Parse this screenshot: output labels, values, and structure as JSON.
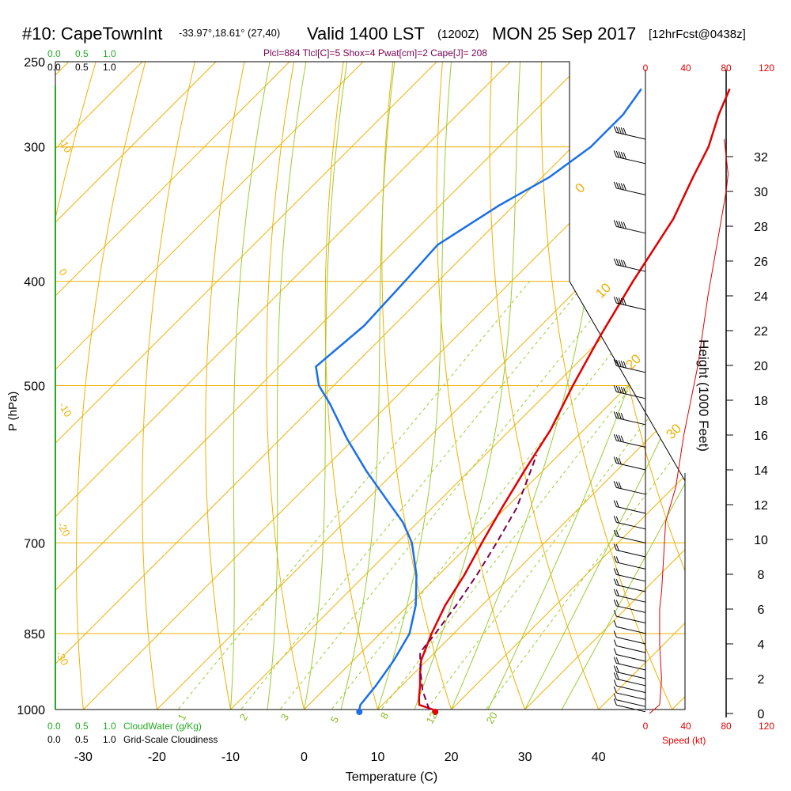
{
  "header": {
    "station": "#10: CapeTownInt",
    "coords": "-33.97°,18.61° (27,40)",
    "valid": "Valid 1400 LST",
    "utc": "(1200Z)",
    "date": "MON 25 Sep 2017",
    "forecast": "[12hrFcst@0438z]"
  },
  "indices": "Plcl=884 Tlcl[C]=5 Shox=4 Pwat[cm]=2 Cape[J]= 208",
  "colors": {
    "temperature": "#e00000",
    "dewpoint": "#1a6fe8",
    "parcel": "#7a0050",
    "isotherm": "#f0b000",
    "dry_adiabat": "#f0b000",
    "moist_adiabat": "#9acd32",
    "mixing_ratio": "#9acd32",
    "cloud_scale": "#22aa22",
    "speed": "#e00000"
  },
  "cloud_scale": {
    "top_green": [
      "0.0",
      "0.5",
      "1.0"
    ],
    "top_black": [
      "0.0",
      "0.5",
      "1.0"
    ],
    "bottom_green": [
      "0.0",
      "0.5",
      "1.0"
    ],
    "bottom_black": [
      "0.0",
      "0.5",
      "1.0"
    ],
    "cloudwater_label": "CloudWater (g/Kg)",
    "cloudiness_label": "Grid-Scale Cloudiness"
  },
  "chart_data": {
    "type": "line",
    "title": "#10: CapeTownInt Valid 1400 LST (1200Z) MON 25 Sep 2017",
    "xlabel": "Temperature (C)",
    "ylabel": "P (hPa)",
    "xlim": [
      -34,
      46
    ],
    "ylim_pressure": [
      1000,
      250
    ],
    "x_ticks": [
      "-30",
      "-20",
      "-10",
      "0",
      "10",
      "20",
      "30",
      "40"
    ],
    "p_ticks": [
      "1000",
      "850",
      "700",
      "500",
      "400",
      "300",
      "250"
    ],
    "isobar_levels": [
      1000,
      850,
      700,
      500,
      400,
      300,
      250
    ],
    "series": [
      {
        "name": "Temperature",
        "points": [
          {
            "p": 1000,
            "t": 17.5
          },
          {
            "p": 990,
            "t": 15.0
          },
          {
            "p": 975,
            "t": 14.0
          },
          {
            "p": 950,
            "t": 12.5
          },
          {
            "p": 925,
            "t": 10.8
          },
          {
            "p": 900,
            "t": 9.2
          },
          {
            "p": 850,
            "t": 7.0
          },
          {
            "p": 800,
            "t": 5.0
          },
          {
            "p": 750,
            "t": 3.5
          },
          {
            "p": 700,
            "t": 1.5
          },
          {
            "p": 650,
            "t": -0.5
          },
          {
            "p": 600,
            "t": -2.5
          },
          {
            "p": 550,
            "t": -4.5
          },
          {
            "p": 500,
            "t": -7.5
          },
          {
            "p": 450,
            "t": -10.5
          },
          {
            "p": 400,
            "t": -13.5
          },
          {
            "p": 350,
            "t": -16.5
          },
          {
            "p": 320,
            "t": -19.5
          },
          {
            "p": 300,
            "t": -21.5
          },
          {
            "p": 280,
            "t": -24.5
          },
          {
            "p": 265,
            "t": -26.5
          }
        ]
      },
      {
        "name": "Dewpoint",
        "points": [
          {
            "p": 1000,
            "t": 7.5
          },
          {
            "p": 990,
            "t": 7.0
          },
          {
            "p": 950,
            "t": 6.5
          },
          {
            "p": 900,
            "t": 5.5
          },
          {
            "p": 850,
            "t": 4.0
          },
          {
            "p": 800,
            "t": 1.0
          },
          {
            "p": 750,
            "t": -3.0
          },
          {
            "p": 700,
            "t": -8.0
          },
          {
            "p": 670,
            "t": -12.0
          },
          {
            "p": 640,
            "t": -17.0
          },
          {
            "p": 600,
            "t": -24.0
          },
          {
            "p": 560,
            "t": -31.0
          },
          {
            "p": 520,
            "t": -38.0
          },
          {
            "p": 500,
            "t": -42.0
          },
          {
            "p": 480,
            "t": -45.0
          },
          {
            "p": 440,
            "t": -44.0
          },
          {
            "p": 400,
            "t": -44.5
          },
          {
            "p": 370,
            "t": -45.0
          },
          {
            "p": 340,
            "t": -42.0
          },
          {
            "p": 320,
            "t": -39.0
          },
          {
            "p": 300,
            "t": -37.5
          },
          {
            "p": 280,
            "t": -37.5
          },
          {
            "p": 265,
            "t": -38.5
          }
        ]
      },
      {
        "name": "Parcel",
        "points": [
          {
            "p": 1000,
            "t": 17.0
          },
          {
            "p": 960,
            "t": 13.5
          },
          {
            "p": 920,
            "t": 10.5
          },
          {
            "p": 885,
            "t": 8.0
          },
          {
            "p": 850,
            "t": 7.5
          },
          {
            "p": 800,
            "t": 6.5
          },
          {
            "p": 750,
            "t": 5.2
          },
          {
            "p": 700,
            "t": 3.5
          },
          {
            "p": 650,
            "t": 1.5
          },
          {
            "p": 610,
            "t": -1.0
          },
          {
            "p": 580,
            "t": -3.0
          }
        ]
      }
    ],
    "surface_markers": [
      {
        "name": "Temperature",
        "p": 1000,
        "t": 17.8
      },
      {
        "name": "Dewpoint",
        "p": 1000,
        "t": 7.5
      }
    ],
    "isotherm_labels": [
      {
        "t": 0,
        "label": "0"
      },
      {
        "t": 10,
        "label": "10"
      },
      {
        "t": 20,
        "label": "20"
      },
      {
        "t": 30,
        "label": "30"
      }
    ],
    "left_temp_labels": [
      {
        "t": -10,
        "label": "-10"
      },
      {
        "t": 0,
        "label": "0"
      },
      {
        "t": -10,
        "label": "-10"
      },
      {
        "t": -20,
        "label": "-20"
      },
      {
        "t": -30,
        "label": "-30"
      }
    ],
    "mixing_ratio_lines": [
      1,
      2,
      3,
      5,
      8,
      12,
      20
    ],
    "mixing_ratio_labels": [
      "1",
      "2",
      "3",
      "5",
      "8",
      "12",
      "20"
    ],
    "height_axis": {
      "label": "Height (1000 Feet)",
      "ticks": [
        "0",
        "2",
        "4",
        "6",
        "8",
        "10",
        "12",
        "14",
        "16",
        "18",
        "20",
        "22",
        "24",
        "26",
        "28",
        "30",
        "32"
      ]
    },
    "speed_axis": {
      "label": "Speed (kt)",
      "ticks": [
        "0",
        "40",
        "80",
        "120"
      ]
    },
    "wind_speed_profile": [
      {
        "h": 0,
        "kt": 4
      },
      {
        "h": 0.5,
        "kt": 14
      },
      {
        "h": 2,
        "kt": 16
      },
      {
        "h": 4,
        "kt": 14
      },
      {
        "h": 6,
        "kt": 14
      },
      {
        "h": 7,
        "kt": 16
      },
      {
        "h": 9,
        "kt": 18
      },
      {
        "h": 11,
        "kt": 20
      },
      {
        "h": 13,
        "kt": 30
      },
      {
        "h": 16,
        "kt": 38
      },
      {
        "h": 20,
        "kt": 52
      },
      {
        "h": 24,
        "kt": 62
      },
      {
        "h": 26,
        "kt": 68
      },
      {
        "h": 28,
        "kt": 74
      },
      {
        "h": 30,
        "kt": 80
      },
      {
        "h": 31,
        "kt": 82
      },
      {
        "h": 32,
        "kt": 80
      },
      {
        "h": 33,
        "kt": 78
      }
    ],
    "wind_barbs": [
      {
        "h": 0.1,
        "dir": 250,
        "kt": 5
      },
      {
        "h": 0.4,
        "dir": 255,
        "kt": 10
      },
      {
        "h": 0.8,
        "dir": 255,
        "kt": 12
      },
      {
        "h": 1.2,
        "dir": 255,
        "kt": 14
      },
      {
        "h": 1.6,
        "dir": 255,
        "kt": 15
      },
      {
        "h": 2.0,
        "dir": 255,
        "kt": 15
      },
      {
        "h": 2.5,
        "dir": 255,
        "kt": 15
      },
      {
        "h": 3.0,
        "dir": 255,
        "kt": 14
      },
      {
        "h": 3.5,
        "dir": 255,
        "kt": 14
      },
      {
        "h": 4.0,
        "dir": 255,
        "kt": 14
      },
      {
        "h": 4.6,
        "dir": 258,
        "kt": 14
      },
      {
        "h": 5.2,
        "dir": 260,
        "kt": 14
      },
      {
        "h": 5.8,
        "dir": 262,
        "kt": 15
      },
      {
        "h": 6.4,
        "dir": 265,
        "kt": 15
      },
      {
        "h": 7.0,
        "dir": 268,
        "kt": 16
      },
      {
        "h": 7.6,
        "dir": 270,
        "kt": 17
      },
      {
        "h": 8.3,
        "dir": 272,
        "kt": 18
      },
      {
        "h": 9.0,
        "dir": 272,
        "kt": 18
      },
      {
        "h": 9.8,
        "dir": 275,
        "kt": 19
      },
      {
        "h": 10.6,
        "dir": 275,
        "kt": 20
      },
      {
        "h": 11.5,
        "dir": 278,
        "kt": 22
      },
      {
        "h": 12.6,
        "dir": 280,
        "kt": 28
      },
      {
        "h": 14.0,
        "dir": 280,
        "kt": 32
      },
      {
        "h": 15.3,
        "dir": 282,
        "kt": 36
      },
      {
        "h": 16.6,
        "dir": 282,
        "kt": 40
      },
      {
        "h": 18.1,
        "dir": 283,
        "kt": 50
      },
      {
        "h": 19.6,
        "dir": 283,
        "kt": 55
      },
      {
        "h": 23.2,
        "dir": 285,
        "kt": 60
      },
      {
        "h": 25.4,
        "dir": 285,
        "kt": 65
      },
      {
        "h": 27.6,
        "dir": 285,
        "kt": 70
      },
      {
        "h": 29.8,
        "dir": 285,
        "kt": 75
      },
      {
        "h": 31.6,
        "dir": 285,
        "kt": 80
      },
      {
        "h": 33.0,
        "dir": 285,
        "kt": 80
      }
    ]
  }
}
